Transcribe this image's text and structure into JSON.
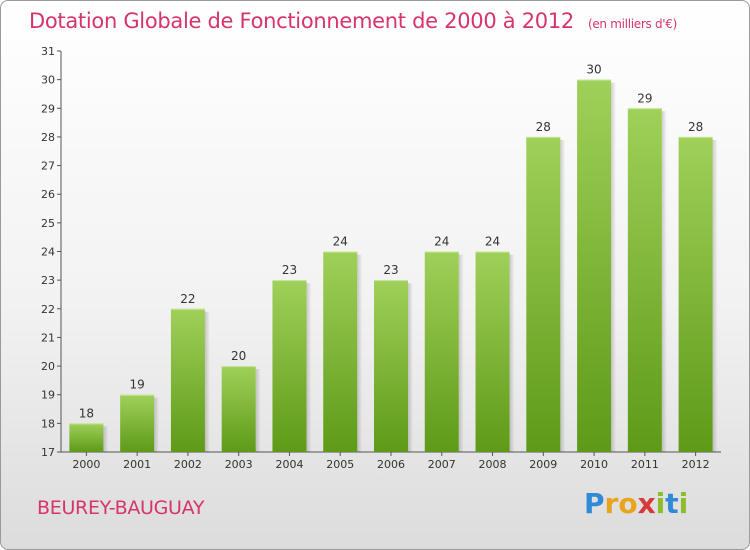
{
  "header": {
    "title": "Dotation Globale de Fonctionnement de 2000 à 2012",
    "unit": "(en milliers d'€)"
  },
  "commune": "BEUREY-BAUGUAY",
  "logo": {
    "letters": [
      "P",
      "r",
      "o",
      "x",
      "i",
      "t",
      "i"
    ],
    "colors": [
      "#2f8ad8",
      "#e8a51b",
      "#e8a51b",
      "#d63b3b",
      "#8bbe2a",
      "#2f8ad8",
      "#8bbe2a"
    ]
  },
  "colors": {
    "bar_top": "#a0d05a",
    "bar_bottom": "#5e9a18",
    "title": "#d6346b"
  },
  "chart_data": {
    "type": "bar",
    "title": "Dotation Globale de Fonctionnement de 2000 à 2012",
    "subtitle": "(en milliers d'€)",
    "xlabel": "",
    "ylabel": "",
    "categories": [
      "2000",
      "2001",
      "2002",
      "2003",
      "2004",
      "2005",
      "2006",
      "2007",
      "2008",
      "2009",
      "2010",
      "2011",
      "2012"
    ],
    "values": [
      18,
      19,
      22,
      20,
      23,
      24,
      23,
      24,
      24,
      28,
      30,
      29,
      28
    ],
    "ylim": [
      17,
      31
    ],
    "yticks": [
      17,
      18,
      19,
      20,
      21,
      22,
      23,
      24,
      25,
      26,
      27,
      28,
      29,
      30,
      31
    ],
    "grid": false,
    "legend": "none"
  }
}
